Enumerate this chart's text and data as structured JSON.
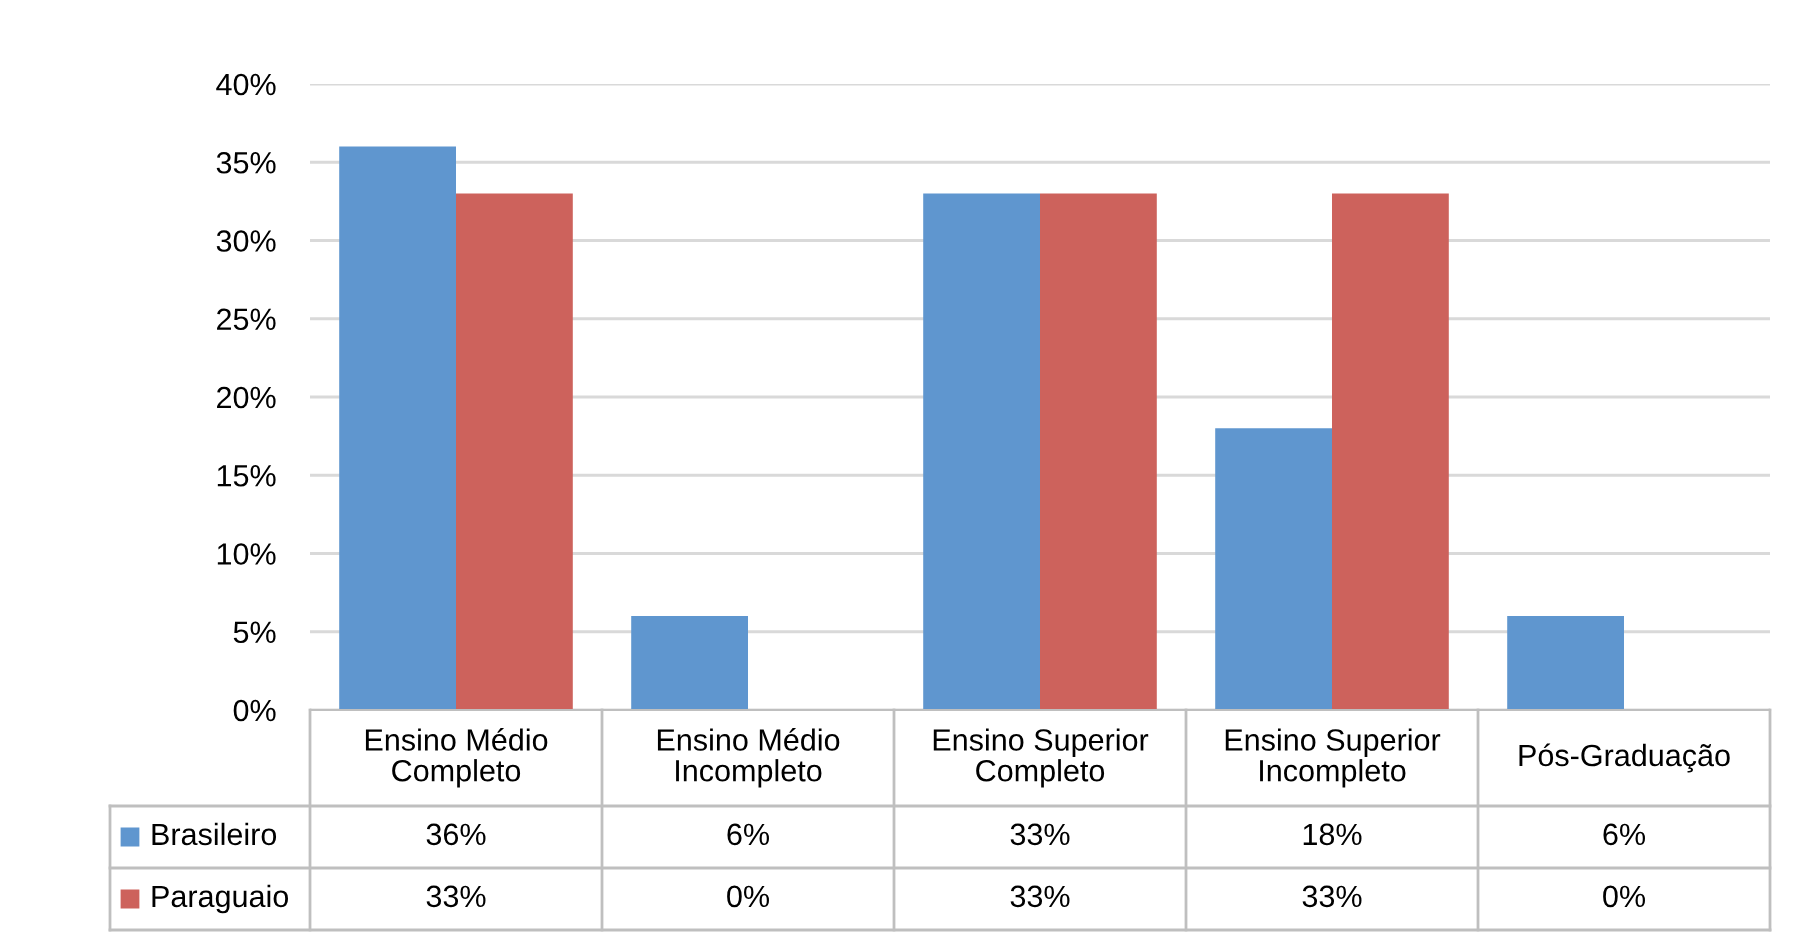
{
  "chart_data": {
    "type": "bar",
    "categories": [
      "Ensino Médio Completo",
      "Ensino Médio Incompleto",
      "Ensino Superior Completo",
      "Ensino Superior Incompleto",
      "Pós-Graduação"
    ],
    "series": [
      {
        "name": "Brasileiro",
        "color": "#5f96cf",
        "values": [
          36,
          6,
          33,
          18,
          6
        ],
        "value_labels": [
          "36%",
          "6%",
          "33%",
          "18%",
          "6%"
        ]
      },
      {
        "name": "Paraguaio",
        "color": "#cd625c",
        "values": [
          33,
          0,
          33,
          33,
          0
        ],
        "value_labels": [
          "33%",
          "0%",
          "33%",
          "33%",
          "0%"
        ]
      }
    ],
    "ylim": [
      0,
      40
    ],
    "yticks": [
      {
        "value": 0,
        "label": "0%"
      },
      {
        "value": 5,
        "label": "5%"
      },
      {
        "value": 10,
        "label": "10%"
      },
      {
        "value": 15,
        "label": "15%"
      },
      {
        "value": 20,
        "label": "20%"
      },
      {
        "value": 25,
        "label": "25%"
      },
      {
        "value": 30,
        "label": "30%"
      },
      {
        "value": 35,
        "label": "35%"
      },
      {
        "value": 40,
        "label": "40%"
      }
    ],
    "grid": "y",
    "legend": "bottom"
  }
}
